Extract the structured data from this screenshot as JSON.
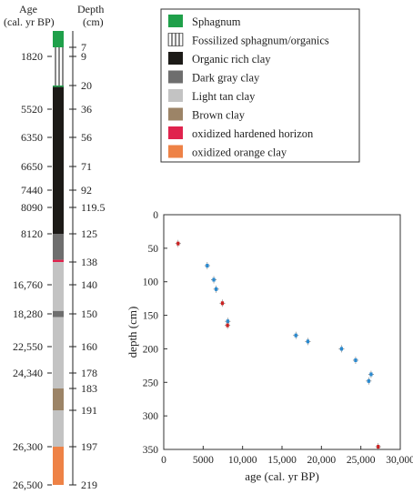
{
  "core": {
    "age_header": [
      "Age",
      "(cal. yr BP)"
    ],
    "depth_header": [
      "Depth",
      "(cm)"
    ],
    "age_labels": [
      {
        "text": "1820",
        "depth": 9,
        "color": "#222222"
      },
      {
        "text": "5520",
        "depth": 36,
        "color": "#222222"
      },
      {
        "text": "6350",
        "depth": 56,
        "color": "#222222"
      },
      {
        "text": "6650",
        "depth": 71,
        "color": "#222222"
      },
      {
        "text": "7440",
        "depth": 92,
        "color": "#222222"
      },
      {
        "text": "8090",
        "depth": 119.5,
        "color": "#222222"
      },
      {
        "text": "8120",
        "depth": 125,
        "color": "#222222"
      },
      {
        "text": "16,760",
        "depth": 140,
        "color": "#222222"
      },
      {
        "text": "18,280",
        "depth": 150,
        "color": "#222222"
      },
      {
        "text": "22,550",
        "depth": 160,
        "color": "#222222"
      },
      {
        "text": "24,340",
        "depth": 178,
        "color": "#222222"
      },
      {
        "text": "26,300",
        "depth": 197,
        "color": "#222222"
      },
      {
        "text": "26,500",
        "depth": 219,
        "color": "#cc2222"
      }
    ],
    "depth_labels": [
      "7",
      "9",
      "20",
      "36",
      "56",
      "71",
      "92",
      "119.5",
      "125",
      "138",
      "140",
      "150",
      "160",
      "178",
      "183",
      "191",
      "197",
      "219"
    ],
    "layers": [
      {
        "type": "Sphagnum",
        "top": 0,
        "bottom": 7,
        "color": "#1fa04a"
      },
      {
        "type": "Fossilized sphagnum/organics",
        "top": 7,
        "bottom": 20,
        "color": "hatch"
      },
      {
        "type": "Sphagnum",
        "top": 20,
        "bottom": 21,
        "color": "#1fa04a"
      },
      {
        "type": "Organic rich clay",
        "top": 21,
        "bottom": 125,
        "color": "#1c1a17"
      },
      {
        "type": "Dark gray clay",
        "top": 125,
        "bottom": 137,
        "color": "#6e6e6e"
      },
      {
        "type": "oxidized hardened horizon",
        "top": 137,
        "bottom": 138,
        "color": "#e0234d"
      },
      {
        "type": "Light tan clay",
        "top": 138,
        "bottom": 149,
        "color": "#c3c3c3"
      },
      {
        "type": "Dark gray clay",
        "top": 149,
        "bottom": 151,
        "color": "#6e6e6e"
      },
      {
        "type": "Light tan clay",
        "top": 151,
        "bottom": 183,
        "color": "#c3c3c3"
      },
      {
        "type": "Brown clay",
        "top": 183,
        "bottom": 191,
        "color": "#9c8467"
      },
      {
        "type": "Light tan clay",
        "top": 191,
        "bottom": 197,
        "color": "#c3c3c3"
      },
      {
        "type": "oxidized orange clay",
        "top": 197,
        "bottom": 219,
        "color": "#ee8246"
      }
    ]
  },
  "legend": {
    "items": [
      {
        "label": "Sphagnum",
        "color": "#1fa04a"
      },
      {
        "label": "Fossilized sphagnum/organics",
        "color": "hatch"
      },
      {
        "label": "Organic rich clay",
        "color": "#1c1a17"
      },
      {
        "label": "Dark gray clay",
        "color": "#6e6e6e"
      },
      {
        "label": "Light tan clay",
        "color": "#c3c3c3"
      },
      {
        "label": "Brown clay",
        "color": "#9c8467"
      },
      {
        "label": "oxidized hardened horizon",
        "color": "#e0234d"
      },
      {
        "label": "oxidized orange clay",
        "color": "#ee8246"
      }
    ]
  },
  "chart_data": {
    "type": "scatter",
    "xlabel": "age (cal. yr BP)",
    "ylabel": "depth (cm)",
    "xlim": [
      0,
      30000
    ],
    "ylim": [
      350,
      0
    ],
    "y_inverted": true,
    "xticks": [
      0,
      5000,
      10000,
      15000,
      20000,
      25000,
      30000
    ],
    "xtick_labels": [
      "0",
      "5000",
      "10,000",
      "15,000",
      "20,000",
      "25,000",
      "30,000"
    ],
    "yticks": [
      0,
      50,
      100,
      150,
      200,
      250,
      300,
      350
    ],
    "ytick_labels": [
      "0",
      "50",
      "100",
      "150",
      "200",
      "250",
      "300",
      "350"
    ],
    "series": [
      {
        "color": "#2a8ad0",
        "points": [
          {
            "x": 5520,
            "y": 76
          },
          {
            "x": 6350,
            "y": 97
          },
          {
            "x": 6650,
            "y": 111
          },
          {
            "x": 8120,
            "y": 159
          },
          {
            "x": 16760,
            "y": 180
          },
          {
            "x": 18280,
            "y": 189
          },
          {
            "x": 22550,
            "y": 200
          },
          {
            "x": 24340,
            "y": 217
          },
          {
            "x": 26300,
            "y": 238
          },
          {
            "x": 26000,
            "y": 248
          }
        ]
      },
      {
        "color": "#cc2222",
        "points": [
          {
            "x": 1820,
            "y": 43
          },
          {
            "x": 7440,
            "y": 132
          },
          {
            "x": 8090,
            "y": 165
          },
          {
            "x": 27200,
            "y": 346
          }
        ]
      }
    ]
  }
}
